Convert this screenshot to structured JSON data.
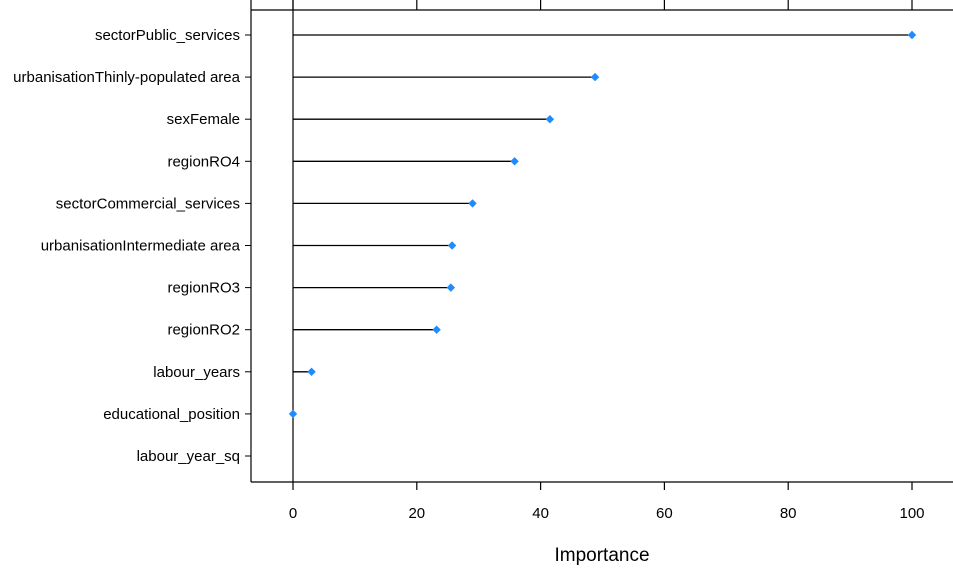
{
  "chart_data": {
    "type": "lollipop",
    "title": "",
    "xlabel": "Importance",
    "ylabel": "",
    "xlim": [
      -7,
      107
    ],
    "xticks": [
      0,
      20,
      40,
      60,
      80,
      100
    ],
    "categories": [
      "sectorPublic_services",
      "urbanisationThinly-populated area",
      "sexFemale",
      "regionRO4",
      "sectorCommercial_services",
      "urbanisationIntermediate area",
      "regionRO3",
      "regionRO2",
      "labour_years",
      "educational_position",
      "labour_year_sq"
    ],
    "values": [
      100,
      48.8,
      41.5,
      35.8,
      29,
      25.7,
      25.5,
      23.2,
      3,
      0,
      null
    ],
    "grid": false,
    "baseline": 0,
    "marker_color": "#1E8CFF",
    "stem_color": "#000000"
  }
}
